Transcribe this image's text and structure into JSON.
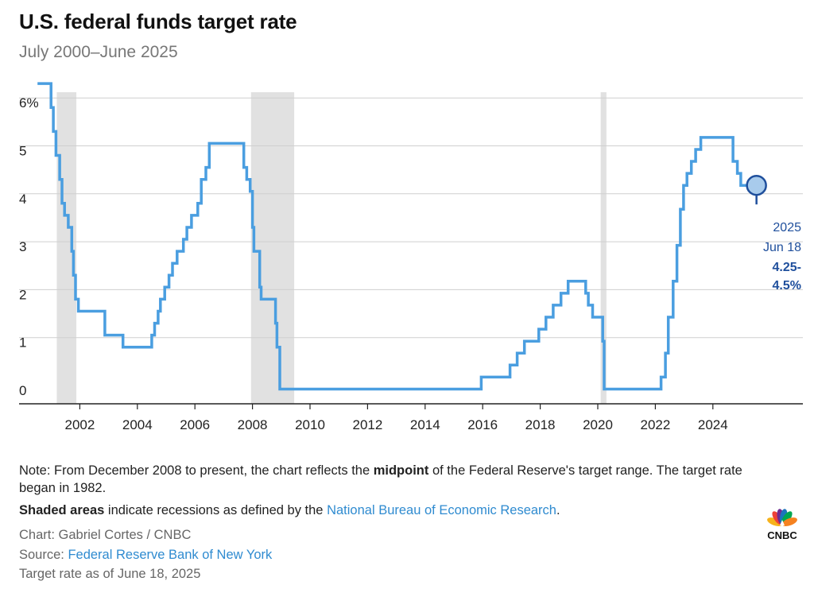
{
  "header": {
    "title": "U.S. federal funds target rate",
    "subtitle": "July 2000–June 2025"
  },
  "chart_data": {
    "type": "line",
    "title": "U.S. federal funds target rate",
    "subtitle": "July 2000–June 2025",
    "xlabel": "",
    "ylabel": "",
    "xlim": [
      2000.5,
      2025.8
    ],
    "ylim": [
      -0.2,
      6.5
    ],
    "y_ticks": [
      0,
      1,
      2,
      3,
      4,
      5,
      6
    ],
    "y_tick_labels": [
      "0",
      "1",
      "2",
      "3",
      "4",
      "5",
      "6%"
    ],
    "x_ticks": [
      2002,
      2004,
      2006,
      2008,
      2010,
      2012,
      2014,
      2016,
      2018,
      2020,
      2022,
      2024
    ],
    "x_tick_labels": [
      "2002",
      "2004",
      "2006",
      "2008",
      "2010",
      "2012",
      "2014",
      "2016",
      "2018",
      "2020",
      "2022",
      "2024"
    ],
    "grid": true,
    "series": [
      {
        "color": "#4a9ee0",
        "x": [
          2000.53,
          2001.0,
          2001.08,
          2001.17,
          2001.3,
          2001.38,
          2001.47,
          2001.6,
          2001.72,
          2001.78,
          2001.85,
          2001.95,
          2002.0,
          2002.87,
          2003.5,
          2004.5,
          2004.6,
          2004.72,
          2004.8,
          2004.95,
          2005.1,
          2005.22,
          2005.38,
          2005.6,
          2005.72,
          2005.88,
          2006.1,
          2006.22,
          2006.38,
          2006.5,
          2007.7,
          2007.8,
          2007.92,
          2008.0,
          2008.05,
          2008.25,
          2008.3,
          2008.8,
          2008.85,
          2008.95,
          2015.95,
          2016.95,
          2017.2,
          2017.45,
          2017.95,
          2018.2,
          2018.45,
          2018.72,
          2018.97,
          2019.58,
          2019.67,
          2019.82,
          2020.17,
          2020.22,
          2022.2,
          2022.35,
          2022.45,
          2022.62,
          2022.75,
          2022.87,
          2022.98,
          2023.1,
          2023.25,
          2023.4,
          2023.58,
          2024.7,
          2024.85,
          2024.97,
          2025.46
        ],
        "y": [
          6.5,
          6.0,
          5.5,
          5.0,
          4.5,
          4.0,
          3.75,
          3.5,
          3.0,
          2.5,
          2.0,
          1.75,
          1.75,
          1.25,
          1.0,
          1.25,
          1.5,
          1.75,
          2.0,
          2.25,
          2.5,
          2.75,
          3.0,
          3.25,
          3.5,
          3.75,
          4.0,
          4.5,
          4.75,
          5.25,
          4.75,
          4.5,
          4.25,
          3.5,
          3.0,
          2.25,
          2.0,
          1.5,
          1.0,
          0.125,
          0.375,
          0.625,
          0.875,
          1.125,
          1.375,
          1.625,
          1.875,
          2.125,
          2.375,
          2.125,
          1.875,
          1.625,
          1.125,
          0.125,
          0.375,
          0.875,
          1.625,
          2.375,
          3.125,
          3.875,
          4.375,
          4.625,
          4.875,
          5.125,
          5.375,
          4.875,
          4.625,
          4.375,
          4.375
        ]
      }
    ],
    "recessions": [
      {
        "start": 2001.2,
        "end": 2001.88
      },
      {
        "start": 2007.95,
        "end": 2009.45
      },
      {
        "start": 2020.1,
        "end": 2020.3
      }
    ],
    "annotation": {
      "x": 2025.46,
      "y": 4.375,
      "line1": "2025",
      "line2": "Jun 18",
      "line3": "4.25-",
      "line4": "4.5%"
    }
  },
  "footer": {
    "note_p1": "Note: From December 2008 to present, the chart reflects the ",
    "note_bold": "midpoint",
    "note_p2": " of the Federal Reserve's target range. The target rate began in 1982.",
    "shaded_bold": "Shaded areas",
    "shaded_text": " indicate recessions as defined by the ",
    "shaded_link": "National Bureau of Economic Research",
    "shaded_end": ".",
    "credit": "Chart: Gabriel Cortes / CNBC",
    "source_label": "Source: ",
    "source_link": "Federal Reserve Bank of New York",
    "as_of": "Target rate as of June 18, 2025"
  },
  "logo": {
    "text": "CNBC",
    "colors": [
      "#f6b21b",
      "#ef4136",
      "#6f2c91",
      "#1c75bc",
      "#00a651",
      "#f58220"
    ]
  },
  "colors": {
    "line": "#4a9ee0",
    "annotation": "#1f4f9c",
    "recession": "#e1e1e1",
    "grid": "#cfcfcf",
    "link": "#2f8bd0"
  }
}
